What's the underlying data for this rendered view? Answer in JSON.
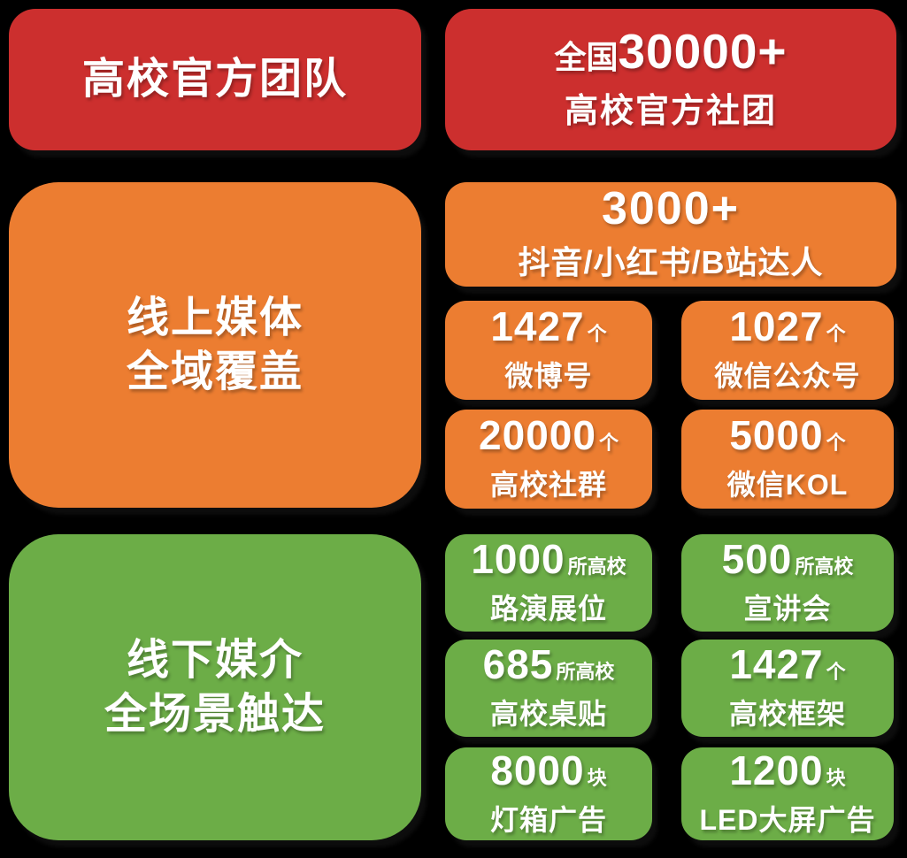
{
  "colors": {
    "red": "#CC2F2E",
    "orange": "#EC7D31",
    "green": "#6CAD47",
    "text": "#FFFFFF",
    "background": "#000000"
  },
  "sections": {
    "official_teams": {
      "title": "高校官方团队",
      "stat": {
        "prefix": "全国",
        "number": "30000+",
        "label": "高校官方社团"
      }
    },
    "online_media": {
      "title_line1": "线上媒体",
      "title_line2": "全域覆盖",
      "headline": {
        "number": "3000+",
        "label": "抖音/小红书/B站达人"
      },
      "stats": [
        {
          "number": "1427",
          "unit": "个",
          "label": "微博号"
        },
        {
          "number": "1027",
          "unit": "个",
          "label": "微信公众号"
        },
        {
          "number": "20000",
          "unit": "个",
          "label": "高校社群"
        },
        {
          "number": "5000",
          "unit": "个",
          "label": "微信KOL"
        }
      ]
    },
    "offline_media": {
      "title_line1": "线下媒介",
      "title_line2": "全场景触达",
      "stats": [
        {
          "number": "1000",
          "unit": "所高校",
          "label": "路演展位"
        },
        {
          "number": "500",
          "unit": "所高校",
          "label": "宣讲会"
        },
        {
          "number": "685",
          "unit": "所高校",
          "label": "高校桌贴"
        },
        {
          "number": "1427",
          "unit": "个",
          "label": "高校框架"
        },
        {
          "number": "8000",
          "unit": "块",
          "label": "灯箱广告"
        },
        {
          "number": "1200",
          "unit": "块",
          "label": "LED大屏广告"
        }
      ]
    }
  }
}
